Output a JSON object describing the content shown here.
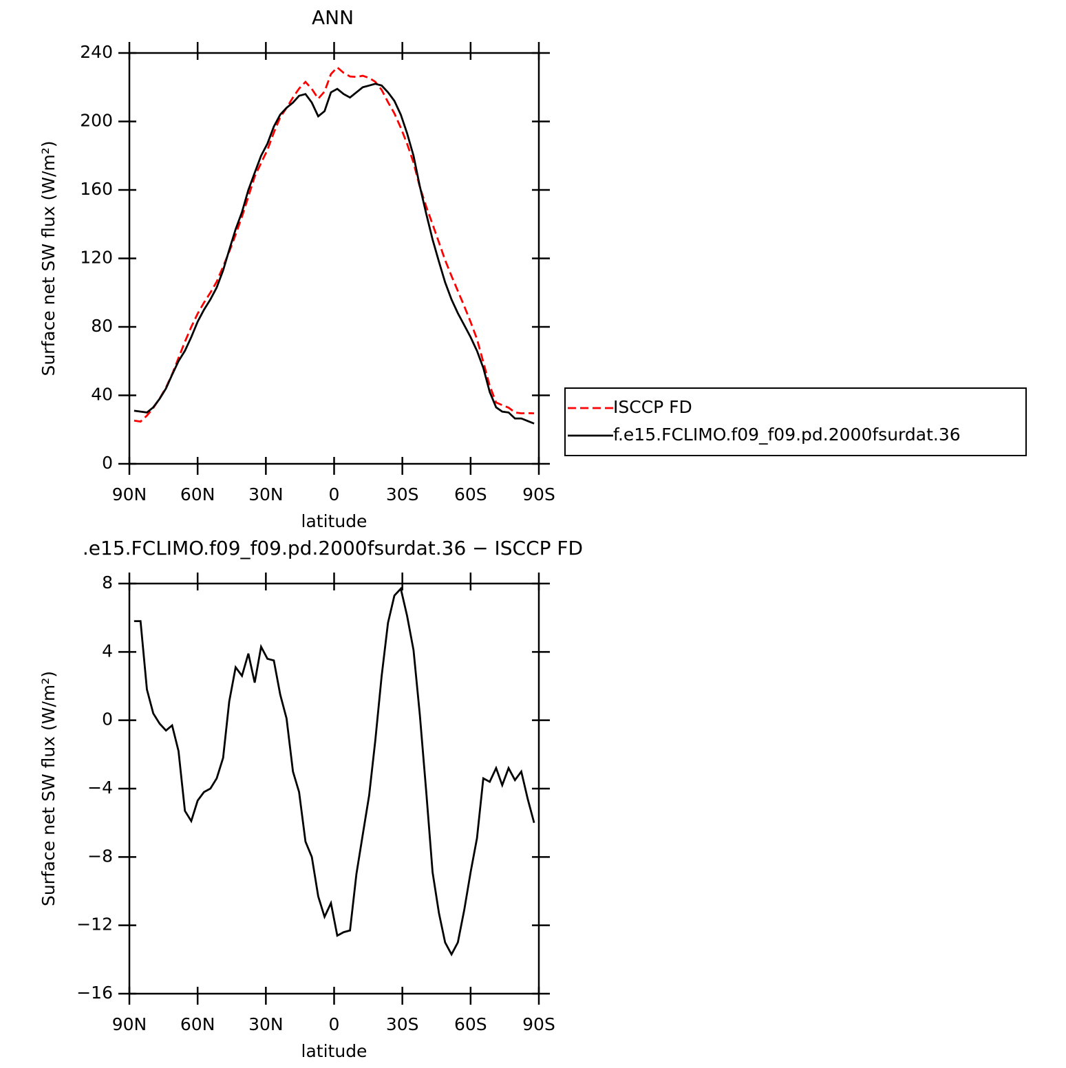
{
  "chart_data": [
    {
      "type": "line",
      "title": "ANN",
      "xlabel": "latitude",
      "ylabel": "Surface net SW flux (W/m²)",
      "xlim": [
        90,
        -90
      ],
      "xticks": [
        {
          "value": 90,
          "label": "90N"
        },
        {
          "value": 60,
          "label": "60N"
        },
        {
          "value": 30,
          "label": "30N"
        },
        0,
        {
          "value": -30,
          "label": "30S"
        },
        {
          "value": -60,
          "label": "60S"
        },
        {
          "value": -90,
          "label": "90S"
        }
      ],
      "ylim": [
        0,
        240
      ],
      "yticks": [
        0,
        40,
        80,
        120,
        160,
        200,
        240
      ],
      "legend": "outside right",
      "x": [
        87.9,
        85.1,
        82.3,
        79.5,
        76.7,
        73.9,
        71.2,
        68.4,
        65.6,
        62.8,
        60.0,
        57.2,
        54.4,
        51.6,
        48.8,
        46.1,
        43.3,
        40.5,
        37.7,
        34.9,
        32.1,
        29.3,
        26.5,
        23.7,
        20.9,
        18.1,
        15.4,
        12.6,
        9.8,
        7.0,
        4.2,
        1.4,
        -1.4,
        -4.2,
        -7.0,
        -9.8,
        -12.6,
        -15.4,
        -18.1,
        -20.9,
        -23.7,
        -26.5,
        -29.3,
        -32.1,
        -34.9,
        -37.7,
        -40.5,
        -43.3,
        -46.1,
        -48.8,
        -51.6,
        -54.4,
        -57.2,
        -60.0,
        -62.8,
        -65.6,
        -68.4,
        -71.2,
        -73.9,
        -76.7,
        -79.5,
        -82.3,
        -85.1,
        -87.9
      ],
      "series": [
        {
          "name": "ISCCP FD",
          "color": "#ff0000",
          "line_style": "dashed",
          "values": [
            25.2,
            24.7,
            28.2,
            32.6,
            38.2,
            44.6,
            52.3,
            61.8,
            71.3,
            79.9,
            87.7,
            94.2,
            100,
            106.4,
            115.2,
            123.9,
            133.9,
            144.4,
            156.1,
            167.8,
            175.7,
            183.4,
            193.5,
            202.5,
            207.9,
            214,
            219.2,
            223.1,
            219,
            213.3,
            217.5,
            227.7,
            231.6,
            228.4,
            226.3,
            226,
            226.7,
            225.4,
            223.2,
            218.4,
            211.3,
            204.7,
            196.3,
            186.9,
            175.9,
            161.7,
            150.2,
            139.9,
            129.3,
            119,
            109.7,
            101,
            92.1,
            82.9,
            72.9,
            59.4,
            45.6,
            35.8,
            34.3,
            32.8,
            30,
            29.5,
            29.6,
            29.5
          ]
        },
        {
          "name": "f.e15.FCLIMO.f09_f09.pd.2000fsurdat.36",
          "color": "#000000",
          "line_style": "solid",
          "values": [
            31,
            30.5,
            30,
            33,
            38,
            44,
            52,
            60,
            66,
            74,
            83,
            90,
            96,
            103,
            113,
            125,
            137,
            147,
            160,
            170,
            180,
            187,
            197,
            204,
            208,
            211,
            215,
            216,
            211,
            203,
            206,
            217,
            219,
            216,
            214,
            217,
            220,
            221,
            222,
            221,
            217,
            212,
            204,
            193,
            180,
            162,
            146,
            131,
            118,
            106,
            96,
            88,
            81,
            74,
            66,
            56,
            42,
            33,
            30.5,
            30,
            26.5,
            26.5,
            25,
            23.5
          ]
        }
      ]
    },
    {
      "type": "line",
      "title": ".e15.FCLIMO.f09_f09.pd.2000fsurdat.36 − ISCCP FD",
      "xlabel": "latitude",
      "ylabel": "Surface net SW flux (W/m²)",
      "xlim": [
        90,
        -90
      ],
      "xticks": [
        {
          "value": 90,
          "label": "90N"
        },
        {
          "value": 60,
          "label": "60N"
        },
        {
          "value": 30,
          "label": "30N"
        },
        0,
        {
          "value": -30,
          "label": "30S"
        },
        {
          "value": -60,
          "label": "60S"
        },
        {
          "value": -90,
          "label": "90S"
        }
      ],
      "ylim": [
        -16,
        8
      ],
      "yticks": [
        {
          "value": -16,
          "label": "−16"
        },
        {
          "value": -12,
          "label": "−12"
        },
        {
          "value": -8,
          "label": "−8"
        },
        {
          "value": -4,
          "label": "−4"
        },
        0,
        4,
        8
      ],
      "color": "#000000",
      "x": [
        87.9,
        85.1,
        82.3,
        79.5,
        76.7,
        73.9,
        71.2,
        68.4,
        65.6,
        62.8,
        60.0,
        57.2,
        54.4,
        51.6,
        48.8,
        46.1,
        43.3,
        40.5,
        37.7,
        34.9,
        32.1,
        29.3,
        26.5,
        23.7,
        20.9,
        18.1,
        15.4,
        12.6,
        9.8,
        7.0,
        4.2,
        1.4,
        -1.4,
        -4.2,
        -7.0,
        -9.8,
        -12.6,
        -15.4,
        -18.1,
        -20.9,
        -23.7,
        -26.5,
        -29.3,
        -32.1,
        -34.9,
        -37.7,
        -40.5,
        -43.3,
        -46.1,
        -48.8,
        -51.6,
        -54.4,
        -57.2,
        -60.0,
        -62.8,
        -65.6,
        -68.4,
        -71.2,
        -73.9,
        -76.7,
        -79.5,
        -82.3,
        -85.1,
        -87.9
      ],
      "values": [
        5.8,
        5.8,
        1.8,
        0.4,
        -0.2,
        -0.6,
        -0.3,
        -1.8,
        -5.3,
        -5.9,
        -4.7,
        -4.2,
        -4.0,
        -3.4,
        -2.2,
        1.1,
        3.1,
        2.6,
        3.9,
        2.2,
        4.3,
        3.6,
        3.5,
        1.5,
        0.1,
        -3.0,
        -4.2,
        -7.1,
        -8.0,
        -10.3,
        -11.5,
        -10.7,
        -12.6,
        -12.4,
        -12.3,
        -9.0,
        -6.7,
        -4.4,
        -1.2,
        2.6,
        5.7,
        7.3,
        7.7,
        6.1,
        4.1,
        0.3,
        -4.2,
        -8.9,
        -11.3,
        -13.0,
        -13.7,
        -13.0,
        -11.1,
        -8.9,
        -6.9,
        -3.4,
        -3.6,
        -2.8,
        -3.8,
        -2.8,
        -3.5,
        -3.0,
        -4.6,
        -6.0
      ]
    }
  ]
}
